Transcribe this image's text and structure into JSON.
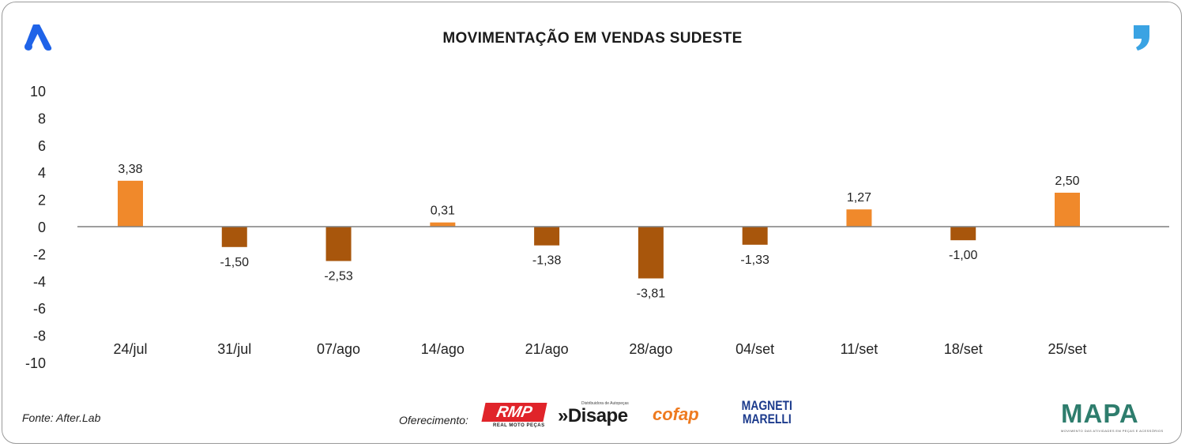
{
  "title": "MOVIMENTAÇÃO EM VENDAS SUDESTE",
  "source": "Fonte: After.Lab",
  "sponsors_label": "Oferecimento:",
  "sponsors": {
    "rmp": "RMP",
    "rmp_sub": "REAL MOTO PEÇAS",
    "disape": "»Disape",
    "disape_sub": "Distribuidora de Autopeças",
    "cofap": "cofap",
    "magneti_line1": "MAGNETI",
    "magneti_line2": "MARELLI",
    "mapa": "MAPA",
    "mapa_sub": "MOVIMENTO DAS ATIVIDADES EM PEÇAS E ACESSÓRIOS"
  },
  "icons": {
    "left_logo": "afterlab-a-logo",
    "right_logo": "comma-logo"
  },
  "colors": {
    "positive": "#f0892b",
    "negative": "#a8560c",
    "axis": "#7f7f7f",
    "logo_blue": "#1f63e8",
    "logo_cyan": "#3aa3e3"
  },
  "chart_data": {
    "type": "bar",
    "title": "MOVIMENTAÇÃO EM VENDAS SUDESTE",
    "xlabel": "",
    "ylabel": "",
    "categories": [
      "24/jul",
      "31/jul",
      "07/ago",
      "14/ago",
      "21/ago",
      "28/ago",
      "04/set",
      "11/set",
      "18/set",
      "25/set"
    ],
    "values": [
      3.38,
      -1.5,
      -2.53,
      0.31,
      -1.38,
      -3.81,
      -1.33,
      1.27,
      -1.0,
      2.5
    ],
    "value_labels": [
      "3,38",
      "-1,50",
      "-2,53",
      "0,31",
      "-1,38",
      "-3,81",
      "-1,33",
      "1,27",
      "-1,00",
      "2,50"
    ],
    "ylim": [
      -10,
      10
    ],
    "yticks": [
      10,
      8,
      6,
      4,
      2,
      0,
      -2,
      -4,
      -6,
      -8,
      -10
    ],
    "ytick_labels": [
      "10",
      "8",
      "6",
      "4",
      "2",
      "0",
      "-2",
      "-4",
      "-6",
      "-8",
      "-10"
    ],
    "grid": false,
    "legend": "none"
  }
}
